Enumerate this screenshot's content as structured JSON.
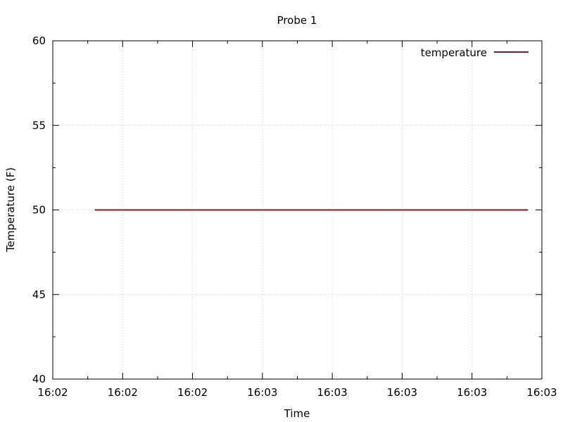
{
  "chart_data": {
    "type": "line",
    "title": "Probe 1",
    "xlabel": "Time",
    "ylabel": "Temperature (F)",
    "x_ticks": [
      "16:02",
      "16:02",
      "16:02",
      "16:03",
      "16:03",
      "16:03",
      "16:03",
      "16:03"
    ],
    "y_ticks": [
      40,
      45,
      50,
      55,
      60
    ],
    "ylim": [
      40,
      60
    ],
    "grid": true,
    "legend_position": "top-right",
    "series": [
      {
        "name": "temperature",
        "color": "#8b1a1a",
        "x": [
          "16:02",
          "16:03"
        ],
        "y": [
          50,
          50
        ]
      }
    ]
  }
}
